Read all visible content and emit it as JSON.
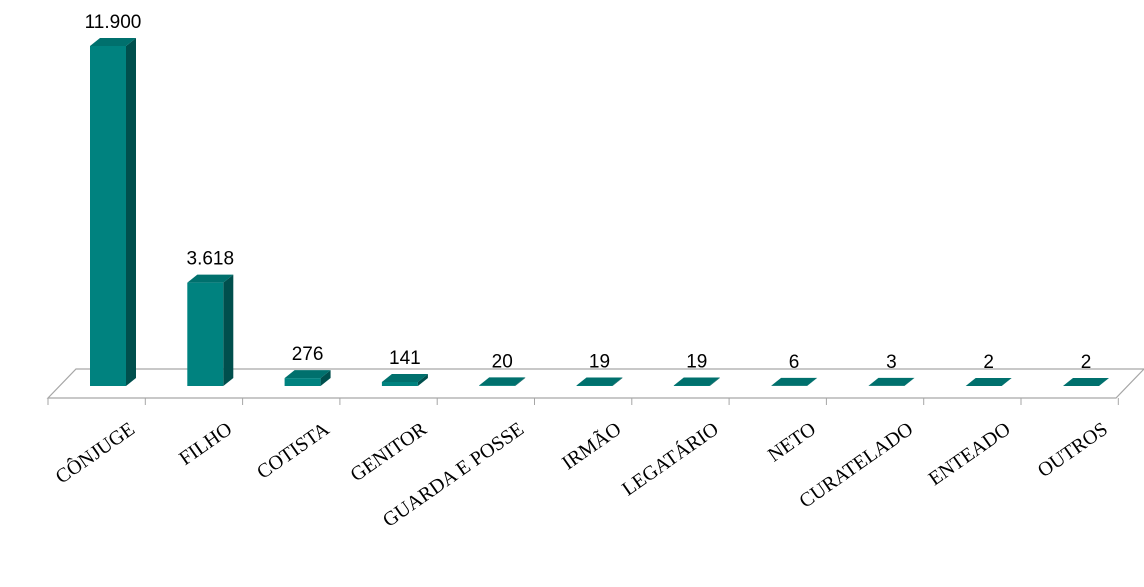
{
  "chart_data": {
    "type": "bar",
    "categories": [
      "CÔNJUGE",
      "FILHO",
      "COTISTA",
      "GENITOR",
      "GUARDA E POSSE",
      "IRMÃO",
      "LEGATÁRIO",
      "NETO",
      "CURATELADO",
      "ENTEADO",
      "OUTROS"
    ],
    "values": [
      11900,
      3618,
      276,
      141,
      20,
      19,
      19,
      6,
      3,
      2,
      2
    ],
    "value_labels": [
      "11.900",
      "3.618",
      "276",
      "141",
      "20",
      "19",
      "19",
      "6",
      "3",
      "2",
      "2"
    ],
    "title": "",
    "xlabel": "",
    "ylabel": "",
    "ylim": [
      0,
      11900
    ],
    "grid": false,
    "legend": "none",
    "three_d": true,
    "colors": {
      "bar_front": "#00827f",
      "bar_side": "#004f4d",
      "bar_top": "#00706d",
      "floor_stroke": "#a6a6a6",
      "floor_fill": "#ffffff"
    }
  }
}
